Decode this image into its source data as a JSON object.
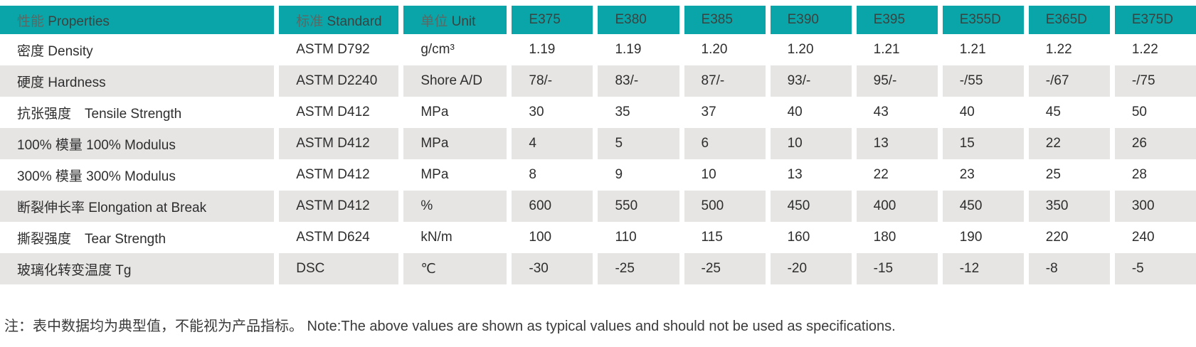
{
  "colors": {
    "header_bg": "#0aa5a8",
    "header_text": "#3b4340",
    "header_text_cn": "#576a66",
    "row_bg": "#ffffff",
    "row_alt_bg": "#e6e5e4",
    "body_text": "#2e2e2e",
    "note_text": "#3a3a3a"
  },
  "table": {
    "header": {
      "properties_cn": "性能",
      "properties_en": "Properties",
      "standard_cn": "标准",
      "standard_en": "Standard",
      "unit_cn": "单位",
      "unit_en": "Unit",
      "grades": [
        "E375",
        "E380",
        "E385",
        "E390",
        "E395",
        "E355D",
        "E365D",
        "E375D"
      ]
    },
    "rows": [
      {
        "property": "密度 Density",
        "standard": "ASTM D792",
        "unit": "g/cm³",
        "values": [
          "1.19",
          "1.19",
          "1.20",
          "1.20",
          "1.21",
          "1.21",
          "1.22",
          "1.22"
        ]
      },
      {
        "property": "硬度 Hardness",
        "standard": "ASTM D2240",
        "unit": "Shore A/D",
        "values": [
          "78/-",
          "83/-",
          "87/-",
          "93/-",
          "95/-",
          "-/55",
          "-/67",
          "-/75"
        ]
      },
      {
        "property": "抗张强度　Tensile Strength",
        "standard": "ASTM D412",
        "unit": "MPa",
        "values": [
          "30",
          "35",
          "37",
          "40",
          "43",
          "40",
          "45",
          "50"
        ]
      },
      {
        "property": "100% 模量 100% Modulus",
        "standard": "ASTM D412",
        "unit": "MPa",
        "values": [
          "4",
          "5",
          "6",
          "10",
          "13",
          "15",
          "22",
          "26"
        ]
      },
      {
        "property": "300% 模量 300% Modulus",
        "standard": "ASTM D412",
        "unit": "MPa",
        "values": [
          "8",
          "9",
          "10",
          "13",
          "22",
          "23",
          "25",
          "28"
        ]
      },
      {
        "property": "断裂伸长率 Elongation at Break",
        "standard": "ASTM D412",
        "unit": "%",
        "values": [
          "600",
          "550",
          "500",
          "450",
          "400",
          "450",
          "350",
          "300"
        ]
      },
      {
        "property": "撕裂强度　Tear Strength",
        "standard": "ASTM D624",
        "unit": "kN/m",
        "values": [
          "100",
          "110",
          "115",
          "160",
          "180",
          "190",
          "220",
          "240"
        ]
      },
      {
        "property": "玻璃化转变温度 Tg",
        "standard": "DSC",
        "unit": "℃",
        "values": [
          "-30",
          "-25",
          "-25",
          "-20",
          "-15",
          "-12",
          "-8",
          "-5"
        ]
      }
    ],
    "note": "注：表中数据均为典型值，不能视为产品指标。 Note:The above values are shown as typical values and should not be used as specifications."
  }
}
